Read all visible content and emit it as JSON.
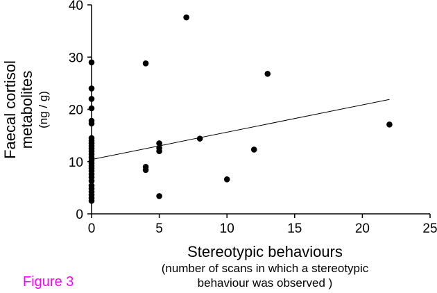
{
  "figure_label": "Figure 3",
  "colors": {
    "figure_label": "#ff00ff",
    "points": "#000000",
    "trendline": "#000000",
    "axes": "#000000"
  },
  "chart_data": {
    "type": "scatter",
    "title": "",
    "xlabel": "Stereotypic behaviours",
    "xlabel_sub_line1": "(number of scans in which a stereotypic",
    "xlabel_sub_line2": "behaviour was observed )",
    "ylabel_line1": "Faecal cortisol",
    "ylabel_line2": "metabolites",
    "ylabel_unit": "(ng / g)",
    "xlim": [
      0,
      25
    ],
    "ylim": [
      0,
      40
    ],
    "xticks": [
      0,
      5,
      10,
      15,
      20,
      25
    ],
    "yticks": [
      0,
      10,
      20,
      30,
      40
    ],
    "grid": false,
    "points": [
      {
        "x": 0,
        "y": 29.0
      },
      {
        "x": 0,
        "y": 24.0
      },
      {
        "x": 0,
        "y": 22.0
      },
      {
        "x": 0,
        "y": 20.2
      },
      {
        "x": 0,
        "y": 17.8
      },
      {
        "x": 0,
        "y": 17.3
      },
      {
        "x": 0,
        "y": 14.5
      },
      {
        "x": 0,
        "y": 14.0
      },
      {
        "x": 0,
        "y": 13.5
      },
      {
        "x": 0,
        "y": 13.0
      },
      {
        "x": 0,
        "y": 12.5
      },
      {
        "x": 0,
        "y": 12.0
      },
      {
        "x": 0,
        "y": 11.4
      },
      {
        "x": 0,
        "y": 10.8
      },
      {
        "x": 0,
        "y": 10.2
      },
      {
        "x": 0,
        "y": 9.7
      },
      {
        "x": 0,
        "y": 9.2
      },
      {
        "x": 0,
        "y": 8.7
      },
      {
        "x": 0,
        "y": 8.2
      },
      {
        "x": 0,
        "y": 7.6
      },
      {
        "x": 0,
        "y": 7.0
      },
      {
        "x": 0,
        "y": 6.3
      },
      {
        "x": 0,
        "y": 5.4
      },
      {
        "x": 0,
        "y": 4.8
      },
      {
        "x": 0,
        "y": 4.2
      },
      {
        "x": 0,
        "y": 3.6
      },
      {
        "x": 0,
        "y": 3.0
      },
      {
        "x": 0,
        "y": 2.5
      },
      {
        "x": 4,
        "y": 28.8
      },
      {
        "x": 4,
        "y": 9.0
      },
      {
        "x": 4,
        "y": 8.4
      },
      {
        "x": 5,
        "y": 13.5
      },
      {
        "x": 5,
        "y": 12.6
      },
      {
        "x": 5,
        "y": 12.0
      },
      {
        "x": 5,
        "y": 3.4
      },
      {
        "x": 7,
        "y": 37.6
      },
      {
        "x": 8,
        "y": 14.4
      },
      {
        "x": 10,
        "y": 6.6
      },
      {
        "x": 12,
        "y": 12.3
      },
      {
        "x": 13,
        "y": 26.8
      },
      {
        "x": 22,
        "y": 17.1
      }
    ],
    "trendline": {
      "x": [
        0,
        22
      ],
      "y": [
        10.4,
        21.9
      ]
    }
  }
}
